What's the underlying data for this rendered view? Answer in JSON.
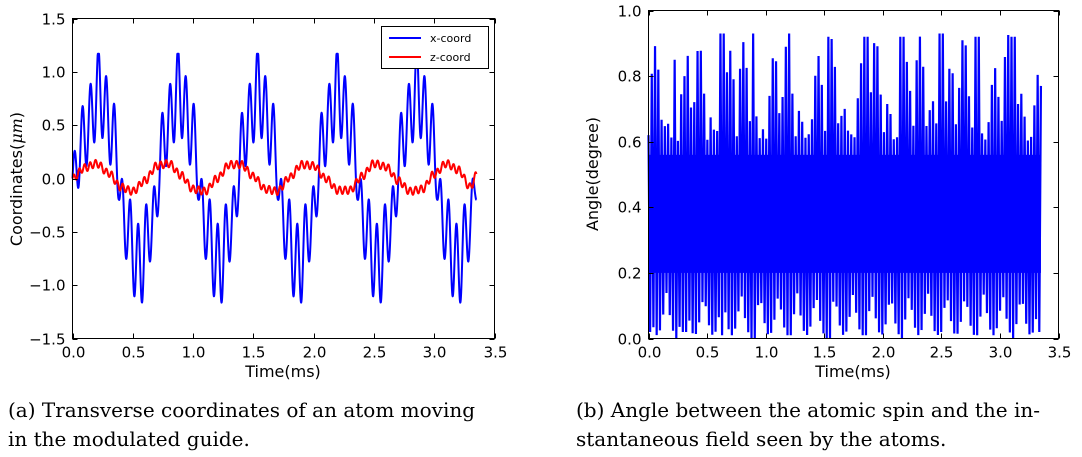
{
  "chart_data": [
    {
      "type": "line",
      "xlabel": "Time(ms)",
      "ylabel": "Coordinates(",
      "ylabel_unit": "μm",
      "xlim": [
        0.0,
        3.5
      ],
      "ylim": [
        -1.5,
        1.5
      ],
      "xticks": [
        0.0,
        0.5,
        1.0,
        1.5,
        2.0,
        2.5,
        3.0,
        3.5
      ],
      "xtick_labels": [
        "0.0",
        "0.5",
        "1.0",
        "1.5",
        "2.0",
        "2.5",
        "3.0",
        "3.5"
      ],
      "yticks": [
        -1.5,
        -1.0,
        -0.5,
        0.0,
        0.5,
        1.0,
        1.5
      ],
      "ytick_labels": [
        "−1.5",
        "−1.0",
        "−0.5",
        "0.0",
        "0.5",
        "1.0",
        "1.5"
      ],
      "legend_position": "top-right",
      "grid": false,
      "series": [
        {
          "name": "x-coord",
          "color": "#0000ff",
          "x": [
            0.0,
            0.11,
            0.22,
            0.33,
            0.44,
            0.55,
            0.66,
            0.77,
            0.88,
            0.99,
            1.1,
            1.21,
            1.32,
            1.43,
            1.54,
            1.65,
            1.76,
            1.87,
            1.98,
            2.09,
            2.2,
            2.31,
            2.42,
            2.53,
            2.64,
            2.75,
            2.86,
            2.97,
            3.08,
            3.19,
            3.3,
            3.35
          ],
          "y": [
            0.0,
            0.6,
            1.15,
            0.6,
            -0.6,
            -1.15,
            -0.6,
            0.6,
            1.15,
            0.6,
            -0.6,
            -1.15,
            -0.6,
            0.6,
            1.15,
            0.6,
            -0.6,
            -1.15,
            -0.6,
            0.6,
            1.15,
            0.6,
            -0.6,
            -1.15,
            -0.6,
            0.6,
            1.15,
            0.6,
            -0.6,
            -1.15,
            -0.6,
            0.05
          ]
        },
        {
          "name": "z-coord",
          "color": "#ff0000",
          "x": [
            0.0,
            0.1,
            0.2,
            0.3,
            0.4,
            0.5,
            0.6,
            0.7,
            0.8,
            0.9,
            1.0,
            1.1,
            1.2,
            1.3,
            1.4,
            1.5,
            1.6,
            1.7,
            1.8,
            1.9,
            2.0,
            2.1,
            2.2,
            2.3,
            2.4,
            2.5,
            2.6,
            2.7,
            2.8,
            2.9,
            3.0,
            3.1,
            3.2,
            3.3,
            3.35
          ],
          "y": [
            0.0,
            0.1,
            0.14,
            0.05,
            -0.08,
            -0.12,
            -0.02,
            0.12,
            0.14,
            0.03,
            -0.1,
            -0.12,
            0.0,
            0.13,
            0.13,
            0.02,
            -0.1,
            -0.12,
            0.01,
            0.13,
            0.12,
            0.0,
            -0.11,
            -0.11,
            0.02,
            0.14,
            0.11,
            -0.02,
            -0.12,
            -0.1,
            0.04,
            0.14,
            0.08,
            -0.08,
            0.03
          ]
        }
      ]
    },
    {
      "type": "line",
      "xlabel": "Time(ms)",
      "ylabel": "Angle(degree)",
      "xlim": [
        0.0,
        3.5
      ],
      "ylim": [
        0.0,
        1.0
      ],
      "xticks": [
        0.0,
        0.5,
        1.0,
        1.5,
        2.0,
        2.5,
        3.0,
        3.5
      ],
      "xtick_labels": [
        "0.0",
        "0.5",
        "1.0",
        "1.5",
        "2.0",
        "2.5",
        "3.0",
        "3.5"
      ],
      "yticks": [
        0.0,
        0.2,
        0.4,
        0.6,
        0.8,
        1.0
      ],
      "ytick_labels": [
        "0.0",
        "0.2",
        "0.4",
        "0.6",
        "0.8",
        "1.0"
      ],
      "grid": false,
      "series": [
        {
          "color": "#0000ff",
          "x": [
            0.0,
            0.23,
            0.31,
            0.63,
            0.89,
            1.2,
            1.53,
            1.86,
            2.16,
            2.5,
            2.8,
            3.11,
            3.35
          ],
          "y_upper": [
            0.62,
            0.85,
            0.8,
            0.93,
            0.93,
            0.93,
            0.92,
            0.92,
            0.92,
            0.93,
            0.92,
            0.92,
            0.77
          ],
          "y_lower": [
            0.02,
            0.0,
            0.02,
            0.01,
            0.0,
            0.01,
            0.0,
            0.01,
            0.0,
            0.02,
            0.01,
            0.0,
            0.02
          ],
          "band": [
            0.2,
            0.56
          ]
        }
      ]
    }
  ],
  "captions": {
    "a": {
      "line1": "(a) Transverse coordinates of an atom moving",
      "line2": "in the modulated guide."
    },
    "b": {
      "line1": "(b) Angle between the atomic spin and the in-",
      "line2": "stantaneous field seen by the atoms."
    }
  }
}
